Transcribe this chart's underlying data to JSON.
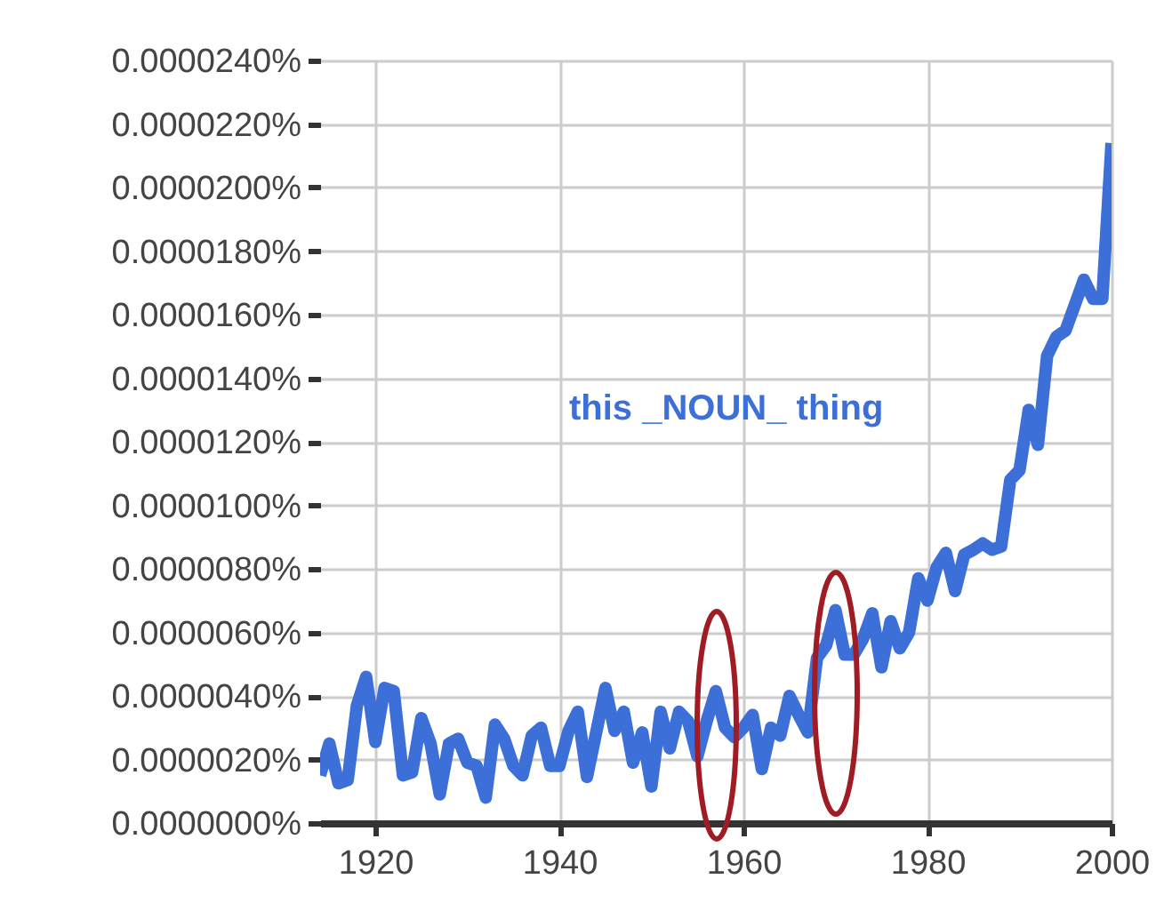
{
  "chart_data": {
    "type": "line",
    "grid": true,
    "marker": "none",
    "line_style": "solid",
    "xlim": [
      1914,
      2000
    ],
    "xticks": [
      1920,
      1940,
      1960,
      1980,
      2000
    ],
    "ylim": [
      0,
      2.4e-05
    ],
    "yticks": [
      {
        "value": 0,
        "label": "0.0000000%"
      },
      {
        "value": 2e-06,
        "label": "0.0000020%"
      },
      {
        "value": 4e-06,
        "label": "0.0000040%"
      },
      {
        "value": 6e-06,
        "label": "0.0000060%"
      },
      {
        "value": 8e-06,
        "label": "0.0000080%"
      },
      {
        "value": 1e-05,
        "label": "0.0000100%"
      },
      {
        "value": 1.2e-05,
        "label": "0.0000120%"
      },
      {
        "value": 1.4e-05,
        "label": "0.0000140%"
      },
      {
        "value": 1.6e-05,
        "label": "0.0000160%"
      },
      {
        "value": 1.8e-05,
        "label": "0.0000180%"
      },
      {
        "value": 2e-05,
        "label": "0.0000200%"
      },
      {
        "value": 2.2e-05,
        "label": "0.0000220%"
      },
      {
        "value": 2.4e-05,
        "label": "0.0000240%"
      }
    ],
    "x": [
      1914,
      1915,
      1916,
      1917,
      1918,
      1919,
      1920,
      1921,
      1922,
      1923,
      1924,
      1925,
      1926,
      1927,
      1928,
      1929,
      1930,
      1931,
      1932,
      1933,
      1934,
      1935,
      1936,
      1937,
      1938,
      1939,
      1940,
      1941,
      1942,
      1943,
      1945,
      1946,
      1947,
      1948,
      1949,
      1950,
      1951,
      1952,
      1953,
      1954,
      1955,
      1956,
      1957,
      1958,
      1959,
      1960,
      1961,
      1962,
      1963,
      1964,
      1965,
      1966,
      1967,
      1968,
      1969,
      1970,
      1971,
      1972,
      1973,
      1974,
      1975,
      1976,
      1977,
      1978,
      1979,
      1980,
      1981,
      1982,
      1983,
      1984,
      1985,
      1986,
      1987,
      1988,
      1989,
      1990,
      1991,
      1992,
      1993,
      1994,
      1995,
      1996,
      1997,
      1998,
      1999,
      2000
    ],
    "series": [
      {
        "name": "this _NOUN_ thing",
        "color": "#3c6fd8",
        "values": [
          1.5e-06,
          2.5e-06,
          1.25e-06,
          1.35e-06,
          3.7e-06,
          4.6e-06,
          2.55e-06,
          4.25e-06,
          4.15e-06,
          1.5e-06,
          1.6e-06,
          3.3e-06,
          2.5e-06,
          9e-07,
          2.5e-06,
          2.65e-06,
          1.9e-06,
          1.8e-06,
          8e-07,
          3.1e-06,
          2.65e-06,
          1.8e-06,
          1.5e-06,
          2.75e-06,
          3e-06,
          1.8e-06,
          1.8e-06,
          2.9e-06,
          3.5e-06,
          1.45e-06,
          4.25e-06,
          2.9e-06,
          3.5e-06,
          1.9e-06,
          2.85e-06,
          1.15e-06,
          3.5e-06,
          2.35e-06,
          3.5e-06,
          3.2e-06,
          2.1e-06,
          3.2e-06,
          4.15e-06,
          3e-06,
          2.7e-06,
          3e-06,
          3.4e-06,
          1.7e-06,
          3e-06,
          2.75e-06,
          4e-06,
          3.4e-06,
          2.85e-06,
          5.2e-06,
          5.6e-06,
          6.7e-06,
          5.3e-06,
          5.3e-06,
          5.8e-06,
          6.6e-06,
          4.9e-06,
          6.35e-06,
          5.5e-06,
          6e-06,
          7.7e-06,
          7e-06,
          8.05e-06,
          8.5e-06,
          7.3e-06,
          8.45e-06,
          8.6e-06,
          8.8e-06,
          8.6e-06,
          8.7e-06,
          1.08e-05,
          1.11e-05,
          1.3e-05,
          1.19e-05,
          1.47e-05,
          1.53e-05,
          1.55e-05,
          1.63e-05,
          1.71e-05,
          1.65e-05,
          1.65e-05,
          2.14e-05
        ]
      }
    ]
  }
}
